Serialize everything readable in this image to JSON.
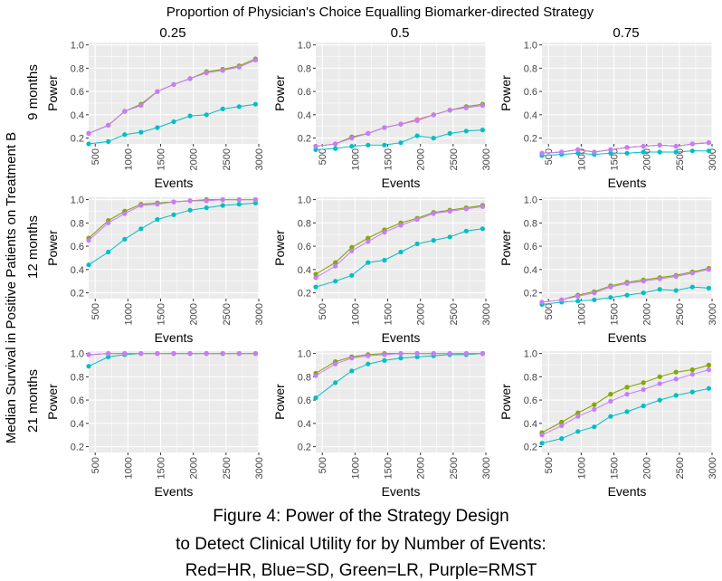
{
  "figure": {
    "top_title": "Proportion of Physician's Choice Equalling Biomarker-directed Strategy",
    "left_title": "Median Survival in Positive Patients on Treatment B",
    "column_labels": [
      "0.25",
      "0.5",
      "0.75"
    ],
    "row_labels": [
      "9 months",
      "12 months",
      "21 months"
    ],
    "caption": [
      "Figure 4: Power of the Strategy Design",
      "to Detect Clinical Utility for by Number of Events:",
      "Red=HR, Blue=SD, Green=LR, Purple=RMST"
    ]
  },
  "colors": {
    "HR": "#F8766D",
    "SD": "#00BFC4",
    "LR": "#7CAE00",
    "RMST": "#C77CFF",
    "panel_bg": "#EBEBEB",
    "grid": "#FFFFFF"
  },
  "chart_data": {
    "type": "line",
    "xlabel": "Events",
    "ylabel": "Power",
    "xlim": [
      400,
      3000
    ],
    "ylim": [
      0.15,
      1.02
    ],
    "x_ticks": [
      500,
      1000,
      1500,
      2000,
      2500,
      3000
    ],
    "y_ticks": [
      0.2,
      0.4,
      0.6,
      0.8,
      1.0
    ],
    "y_tick_labels": [
      "0.2",
      "0.4",
      "0.6",
      "0.8",
      "1.0"
    ],
    "grid": true,
    "series_keys": [
      "HR",
      "SD",
      "LR",
      "RMST"
    ],
    "x": [
      400,
      700,
      950,
      1200,
      1450,
      1700,
      1950,
      2200,
      2450,
      2700,
      2950
    ],
    "panels": [
      {
        "row": "9 months",
        "column": "0.25",
        "HR": [
          0.24,
          0.31,
          0.43,
          0.49,
          0.6,
          0.66,
          0.71,
          0.77,
          0.79,
          0.81,
          0.87
        ],
        "SD": [
          0.15,
          0.17,
          0.23,
          0.25,
          0.29,
          0.34,
          0.39,
          0.4,
          0.45,
          0.47,
          0.49
        ],
        "LR": [
          0.24,
          0.31,
          0.43,
          0.49,
          0.6,
          0.66,
          0.71,
          0.77,
          0.79,
          0.82,
          0.88
        ],
        "RMST": [
          0.24,
          0.31,
          0.43,
          0.48,
          0.6,
          0.66,
          0.71,
          0.76,
          0.78,
          0.81,
          0.87
        ]
      },
      {
        "row": "9 months",
        "column": "0.5",
        "HR": [
          0.13,
          0.15,
          0.21,
          0.24,
          0.29,
          0.32,
          0.36,
          0.4,
          0.44,
          0.47,
          0.49
        ],
        "SD": [
          0.1,
          0.11,
          0.13,
          0.14,
          0.14,
          0.16,
          0.22,
          0.2,
          0.24,
          0.26,
          0.27
        ],
        "LR": [
          0.13,
          0.15,
          0.21,
          0.24,
          0.29,
          0.32,
          0.35,
          0.4,
          0.44,
          0.47,
          0.49
        ],
        "RMST": [
          0.13,
          0.15,
          0.2,
          0.24,
          0.29,
          0.32,
          0.35,
          0.4,
          0.44,
          0.46,
          0.48
        ]
      },
      {
        "row": "9 months",
        "column": "0.75",
        "HR": [
          0.07,
          0.08,
          0.1,
          0.08,
          0.1,
          0.12,
          0.13,
          0.14,
          0.13,
          0.15,
          0.16
        ],
        "SD": [
          0.05,
          0.06,
          0.07,
          0.06,
          0.07,
          0.07,
          0.08,
          0.08,
          0.08,
          0.09,
          0.09
        ],
        "LR": [
          0.07,
          0.08,
          0.1,
          0.08,
          0.1,
          0.12,
          0.13,
          0.14,
          0.13,
          0.15,
          0.16
        ],
        "RMST": [
          0.07,
          0.08,
          0.1,
          0.08,
          0.1,
          0.12,
          0.13,
          0.14,
          0.13,
          0.15,
          0.16
        ]
      },
      {
        "row": "12 months",
        "column": "0.25",
        "HR": [
          0.67,
          0.82,
          0.9,
          0.96,
          0.97,
          0.98,
          0.99,
          1.0,
          1.0,
          1.0,
          1.0
        ],
        "SD": [
          0.44,
          0.55,
          0.66,
          0.75,
          0.83,
          0.87,
          0.91,
          0.93,
          0.95,
          0.96,
          0.97
        ],
        "LR": [
          0.67,
          0.82,
          0.9,
          0.96,
          0.97,
          0.98,
          0.99,
          1.0,
          1.0,
          1.0,
          1.0
        ],
        "RMST": [
          0.65,
          0.8,
          0.88,
          0.95,
          0.96,
          0.98,
          0.99,
          0.99,
          1.0,
          1.0,
          1.0
        ]
      },
      {
        "row": "12 months",
        "column": "0.5",
        "HR": [
          0.36,
          0.46,
          0.59,
          0.67,
          0.74,
          0.8,
          0.84,
          0.89,
          0.91,
          0.93,
          0.95
        ],
        "SD": [
          0.25,
          0.3,
          0.35,
          0.46,
          0.48,
          0.55,
          0.62,
          0.65,
          0.68,
          0.73,
          0.75
        ],
        "LR": [
          0.36,
          0.46,
          0.59,
          0.67,
          0.74,
          0.8,
          0.84,
          0.89,
          0.91,
          0.93,
          0.95
        ],
        "RMST": [
          0.33,
          0.43,
          0.56,
          0.64,
          0.72,
          0.78,
          0.83,
          0.88,
          0.9,
          0.92,
          0.94
        ]
      },
      {
        "row": "12 months",
        "column": "0.75",
        "HR": [
          0.12,
          0.14,
          0.18,
          0.21,
          0.26,
          0.29,
          0.31,
          0.33,
          0.35,
          0.38,
          0.41
        ],
        "SD": [
          0.1,
          0.12,
          0.13,
          0.14,
          0.16,
          0.18,
          0.2,
          0.23,
          0.22,
          0.25,
          0.24
        ],
        "LR": [
          0.12,
          0.14,
          0.18,
          0.21,
          0.26,
          0.29,
          0.31,
          0.33,
          0.35,
          0.38,
          0.41
        ],
        "RMST": [
          0.12,
          0.14,
          0.17,
          0.2,
          0.25,
          0.28,
          0.3,
          0.32,
          0.34,
          0.37,
          0.4
        ]
      },
      {
        "row": "21 months",
        "column": "0.25",
        "HR": [
          0.99,
          1.0,
          1.0,
          1.0,
          1.0,
          1.0,
          1.0,
          1.0,
          1.0,
          1.0,
          1.0
        ],
        "SD": [
          0.89,
          0.97,
          0.99,
          1.0,
          1.0,
          1.0,
          1.0,
          1.0,
          1.0,
          1.0,
          1.0
        ],
        "LR": [
          0.99,
          1.0,
          1.0,
          1.0,
          1.0,
          1.0,
          1.0,
          1.0,
          1.0,
          1.0,
          1.0
        ],
        "RMST": [
          0.99,
          1.0,
          1.0,
          1.0,
          1.0,
          1.0,
          1.0,
          1.0,
          1.0,
          1.0,
          1.0
        ]
      },
      {
        "row": "21 months",
        "column": "0.5",
        "HR": [
          0.83,
          0.93,
          0.97,
          0.99,
          1.0,
          1.0,
          1.0,
          1.0,
          1.0,
          1.0,
          1.0
        ],
        "SD": [
          0.62,
          0.75,
          0.85,
          0.91,
          0.94,
          0.96,
          0.97,
          0.98,
          0.99,
          0.99,
          1.0
        ],
        "LR": [
          0.83,
          0.93,
          0.97,
          0.99,
          1.0,
          1.0,
          1.0,
          1.0,
          1.0,
          1.0,
          1.0
        ],
        "RMST": [
          0.81,
          0.91,
          0.96,
          0.98,
          0.99,
          1.0,
          1.0,
          1.0,
          1.0,
          1.0,
          1.0
        ]
      },
      {
        "row": "21 months",
        "column": "0.75",
        "HR": [
          0.32,
          0.41,
          0.49,
          0.56,
          0.65,
          0.71,
          0.75,
          0.8,
          0.84,
          0.86,
          0.9
        ],
        "SD": [
          0.23,
          0.27,
          0.33,
          0.37,
          0.46,
          0.5,
          0.55,
          0.6,
          0.64,
          0.67,
          0.7
        ],
        "LR": [
          0.32,
          0.41,
          0.49,
          0.56,
          0.65,
          0.71,
          0.75,
          0.8,
          0.84,
          0.86,
          0.9
        ],
        "RMST": [
          0.3,
          0.38,
          0.46,
          0.52,
          0.59,
          0.65,
          0.69,
          0.74,
          0.78,
          0.82,
          0.86
        ]
      }
    ]
  }
}
